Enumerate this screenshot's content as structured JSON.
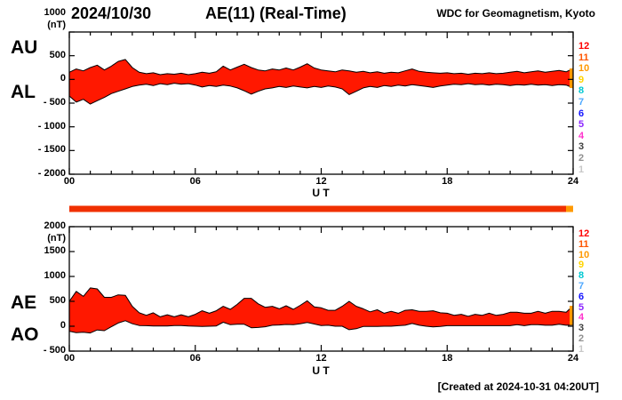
{
  "header": {
    "date": "2024/10/30",
    "title": "AE(11) (Real-Time)",
    "source": "WDC for Geomagnetism, Kyoto"
  },
  "footer": {
    "created": "[Created at 2024-10-31 04:20UT]"
  },
  "stations": {
    "numbers": [
      "12",
      "11",
      "10",
      "9",
      "8",
      "7",
      "6",
      "5",
      "4",
      "3",
      "2",
      "1"
    ],
    "colors": [
      "#ff0000",
      "#ff5500",
      "#ff9900",
      "#ffd400",
      "#00c8d2",
      "#4fa8ff",
      "#1414ff",
      "#8c28ff",
      "#ff33cc",
      "#404040",
      "#909090",
      "#c8c8c8"
    ]
  },
  "colors": {
    "fill": "#ff1800",
    "outline": "#000000",
    "bar": "#f03000",
    "latest": "#ff9900",
    "background": "#ffffff"
  },
  "charts": {
    "top": {
      "left_labels": [
        "AU",
        "AL"
      ],
      "unit": "(nT)",
      "y_tick_values": [
        1000,
        500,
        0,
        -500,
        -1000,
        -1500,
        -2000
      ],
      "y_tick_labels": [
        "1000",
        "500",
        "0",
        "- 500",
        "- 1000",
        "- 1500",
        "- 2000"
      ],
      "x_tick_values": [
        0,
        6,
        12,
        18,
        24
      ],
      "x_tick_labels": [
        "00",
        "06",
        "12",
        "18",
        "24"
      ],
      "xlabel": "U T"
    },
    "bottom": {
      "left_labels": [
        "AE",
        "AO"
      ],
      "unit": "(nT)",
      "y_tick_values": [
        2000,
        1500,
        1000,
        500,
        0,
        -500
      ],
      "y_tick_labels": [
        "2000",
        "1500",
        "1000",
        "500",
        "0",
        "- 500"
      ],
      "x_tick_values": [
        0,
        6,
        12,
        18,
        24
      ],
      "x_tick_labels": [
        "00",
        "06",
        "12",
        "18",
        "24"
      ],
      "xlabel": "U T"
    }
  },
  "chart_data": [
    {
      "type": "area",
      "title": "AU and AL auroral electrojet indices",
      "xlabel": "U T",
      "ylabel": "nT",
      "xlim": [
        0,
        24
      ],
      "ylim": [
        -2000,
        1000
      ],
      "x": [
        0,
        0.33,
        0.67,
        1,
        1.33,
        1.67,
        2,
        2.33,
        2.67,
        3,
        3.33,
        3.67,
        4,
        4.33,
        4.67,
        5,
        5.33,
        5.67,
        6,
        6.33,
        6.67,
        7,
        7.33,
        7.67,
        8,
        8.33,
        8.67,
        9,
        9.33,
        9.67,
        10,
        10.33,
        10.67,
        11,
        11.33,
        11.67,
        12,
        12.33,
        12.67,
        13,
        13.33,
        13.67,
        14,
        14.33,
        14.67,
        15,
        15.33,
        15.67,
        16,
        16.33,
        16.67,
        17,
        17.33,
        17.67,
        18,
        18.33,
        18.67,
        19,
        19.33,
        19.67,
        20,
        20.33,
        20.67,
        21,
        21.33,
        21.67,
        22,
        22.33,
        22.67,
        23,
        23.33,
        23.67,
        24
      ],
      "series": [
        {
          "name": "AU",
          "values": [
            150,
            220,
            180,
            250,
            300,
            200,
            280,
            380,
            420,
            250,
            150,
            120,
            140,
            100,
            120,
            110,
            130,
            100,
            120,
            150,
            130,
            160,
            280,
            200,
            260,
            320,
            250,
            200,
            180,
            220,
            200,
            240,
            200,
            260,
            330,
            240,
            200,
            180,
            160,
            200,
            180,
            150,
            170,
            140,
            160,
            130,
            150,
            140,
            180,
            220,
            170,
            150,
            140,
            130,
            140,
            120,
            130,
            110,
            130,
            120,
            140,
            120,
            130,
            150,
            170,
            140,
            160,
            180,
            150,
            170,
            190,
            160,
            230
          ]
        },
        {
          "name": "AL",
          "values": [
            -350,
            -480,
            -420,
            -520,
            -450,
            -380,
            -300,
            -250,
            -200,
            -150,
            -120,
            -100,
            -130,
            -90,
            -110,
            -80,
            -100,
            -90,
            -120,
            -160,
            -130,
            -150,
            -120,
            -140,
            -180,
            -240,
            -310,
            -250,
            -200,
            -180,
            -150,
            -170,
            -140,
            -160,
            -180,
            -150,
            -170,
            -140,
            -160,
            -200,
            -320,
            -250,
            -180,
            -150,
            -170,
            -130,
            -150,
            -120,
            -140,
            -110,
            -130,
            -150,
            -170,
            -140,
            -120,
            -100,
            -110,
            -90,
            -110,
            -100,
            -120,
            -100,
            -110,
            -130,
            -110,
            -120,
            -100,
            -120,
            -110,
            -130,
            -110,
            -120,
            -180
          ]
        }
      ]
    },
    {
      "type": "area",
      "title": "AE and AO auroral electrojet indices",
      "xlabel": "U T",
      "ylabel": "nT",
      "xlim": [
        0,
        24
      ],
      "ylim": [
        -500,
        2000
      ],
      "x": [
        0,
        0.33,
        0.67,
        1,
        1.33,
        1.67,
        2,
        2.33,
        2.67,
        3,
        3.33,
        3.67,
        4,
        4.33,
        4.67,
        5,
        5.33,
        5.67,
        6,
        6.33,
        6.67,
        7,
        7.33,
        7.67,
        8,
        8.33,
        8.67,
        9,
        9.33,
        9.67,
        10,
        10.33,
        10.67,
        11,
        11.33,
        11.67,
        12,
        12.33,
        12.67,
        13,
        13.33,
        13.67,
        14,
        14.33,
        14.67,
        15,
        15.33,
        15.67,
        16,
        16.33,
        16.67,
        17,
        17.33,
        17.67,
        18,
        18.33,
        18.67,
        19,
        19.33,
        19.67,
        20,
        20.33,
        20.67,
        21,
        21.33,
        21.67,
        22,
        22.33,
        22.67,
        23,
        23.33,
        23.67,
        24
      ],
      "series": [
        {
          "name": "AE",
          "values": [
            500,
            700,
            600,
            770,
            750,
            580,
            580,
            630,
            620,
            400,
            270,
            220,
            270,
            190,
            230,
            190,
            230,
            190,
            240,
            310,
            260,
            310,
            400,
            340,
            440,
            560,
            560,
            450,
            380,
            400,
            350,
            410,
            340,
            420,
            510,
            390,
            370,
            320,
            320,
            400,
            500,
            400,
            350,
            290,
            330,
            260,
            300,
            260,
            320,
            330,
            300,
            300,
            310,
            270,
            260,
            220,
            240,
            200,
            240,
            220,
            260,
            220,
            240,
            280,
            280,
            260,
            260,
            300,
            260,
            300,
            300,
            280,
            410
          ]
        },
        {
          "name": "AO",
          "values": [
            -100,
            -130,
            -120,
            -135,
            -75,
            -90,
            -10,
            65,
            110,
            50,
            15,
            10,
            5,
            5,
            5,
            15,
            15,
            5,
            0,
            -5,
            0,
            5,
            80,
            30,
            40,
            40,
            -30,
            -25,
            -10,
            20,
            25,
            35,
            30,
            50,
            75,
            45,
            15,
            20,
            0,
            0,
            -70,
            -50,
            -5,
            -5,
            -5,
            0,
            0,
            10,
            20,
            55,
            20,
            0,
            -15,
            -5,
            10,
            10,
            10,
            10,
            10,
            10,
            10,
            10,
            10,
            10,
            30,
            10,
            30,
            30,
            20,
            20,
            40,
            20,
            25
          ]
        }
      ]
    }
  ]
}
